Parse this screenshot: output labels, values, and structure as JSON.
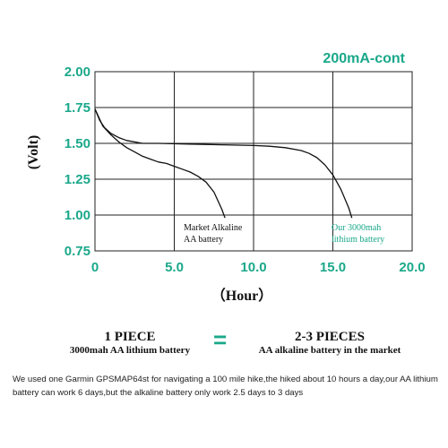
{
  "chart_data": {
    "type": "line",
    "title": "",
    "subtitle": "200mA-cont",
    "xlabel": "（Hour）",
    "ylabel": "(Volt)",
    "xlim": [
      0,
      20
    ],
    "ylim": [
      0.75,
      2.0
    ],
    "x_ticks": [
      "0",
      "5.0",
      "10.0",
      "15.0",
      "20.0"
    ],
    "y_ticks": [
      "2.00",
      "1.75",
      "1.50",
      "1.25",
      "1.00",
      "0.75"
    ],
    "grid": true,
    "series": [
      {
        "name": "Market Alkaline AA battery",
        "color": "#111111",
        "x": [
          0,
          0.5,
          1,
          1.5,
          2,
          2.5,
          3,
          3.5,
          4,
          4.5,
          5,
          5.5,
          6,
          6.5,
          7,
          7.5,
          8,
          8.2
        ],
        "y": [
          1.74,
          1.62,
          1.56,
          1.51,
          1.47,
          1.44,
          1.41,
          1.39,
          1.37,
          1.36,
          1.34,
          1.32,
          1.3,
          1.27,
          1.23,
          1.16,
          1.04,
          0.98
        ]
      },
      {
        "name": "Our 3000mah lithium battery",
        "color": "#111111",
        "x": [
          0,
          0.3,
          0.6,
          1,
          1.5,
          2,
          3,
          4,
          6,
          8,
          10,
          11,
          12,
          13,
          13.5,
          14,
          14.5,
          15,
          15.5,
          16,
          16.2
        ],
        "y": [
          1.74,
          1.66,
          1.61,
          1.57,
          1.54,
          1.52,
          1.5,
          1.5,
          1.495,
          1.49,
          1.485,
          1.48,
          1.47,
          1.45,
          1.43,
          1.4,
          1.35,
          1.28,
          1.18,
          1.05,
          0.98
        ]
      }
    ],
    "annotations": {
      "alkaline_line1": "Market Alkaline",
      "alkaline_line2": "AA battery",
      "lithium_line1": "Our 3000mah",
      "lithium_line2": "lithium battery"
    }
  },
  "comparison": {
    "left_big": "1 PIECE",
    "left_small": "3000mah AA lithium battery",
    "equals": "=",
    "right_big": "2-3 PIECES",
    "right_small": "AA alkaline battery in the market"
  },
  "footnote": "We used one Garmin GPSMAP64st for navigating a 100 mile hike,the hiked about 10 hours a day,our AA lithium battery can work 6 days,but the alkaline battery only work 2.5 days to 3 days",
  "colors": {
    "accent": "#1aa88a",
    "line": "#111111",
    "grid": "#222222"
  }
}
